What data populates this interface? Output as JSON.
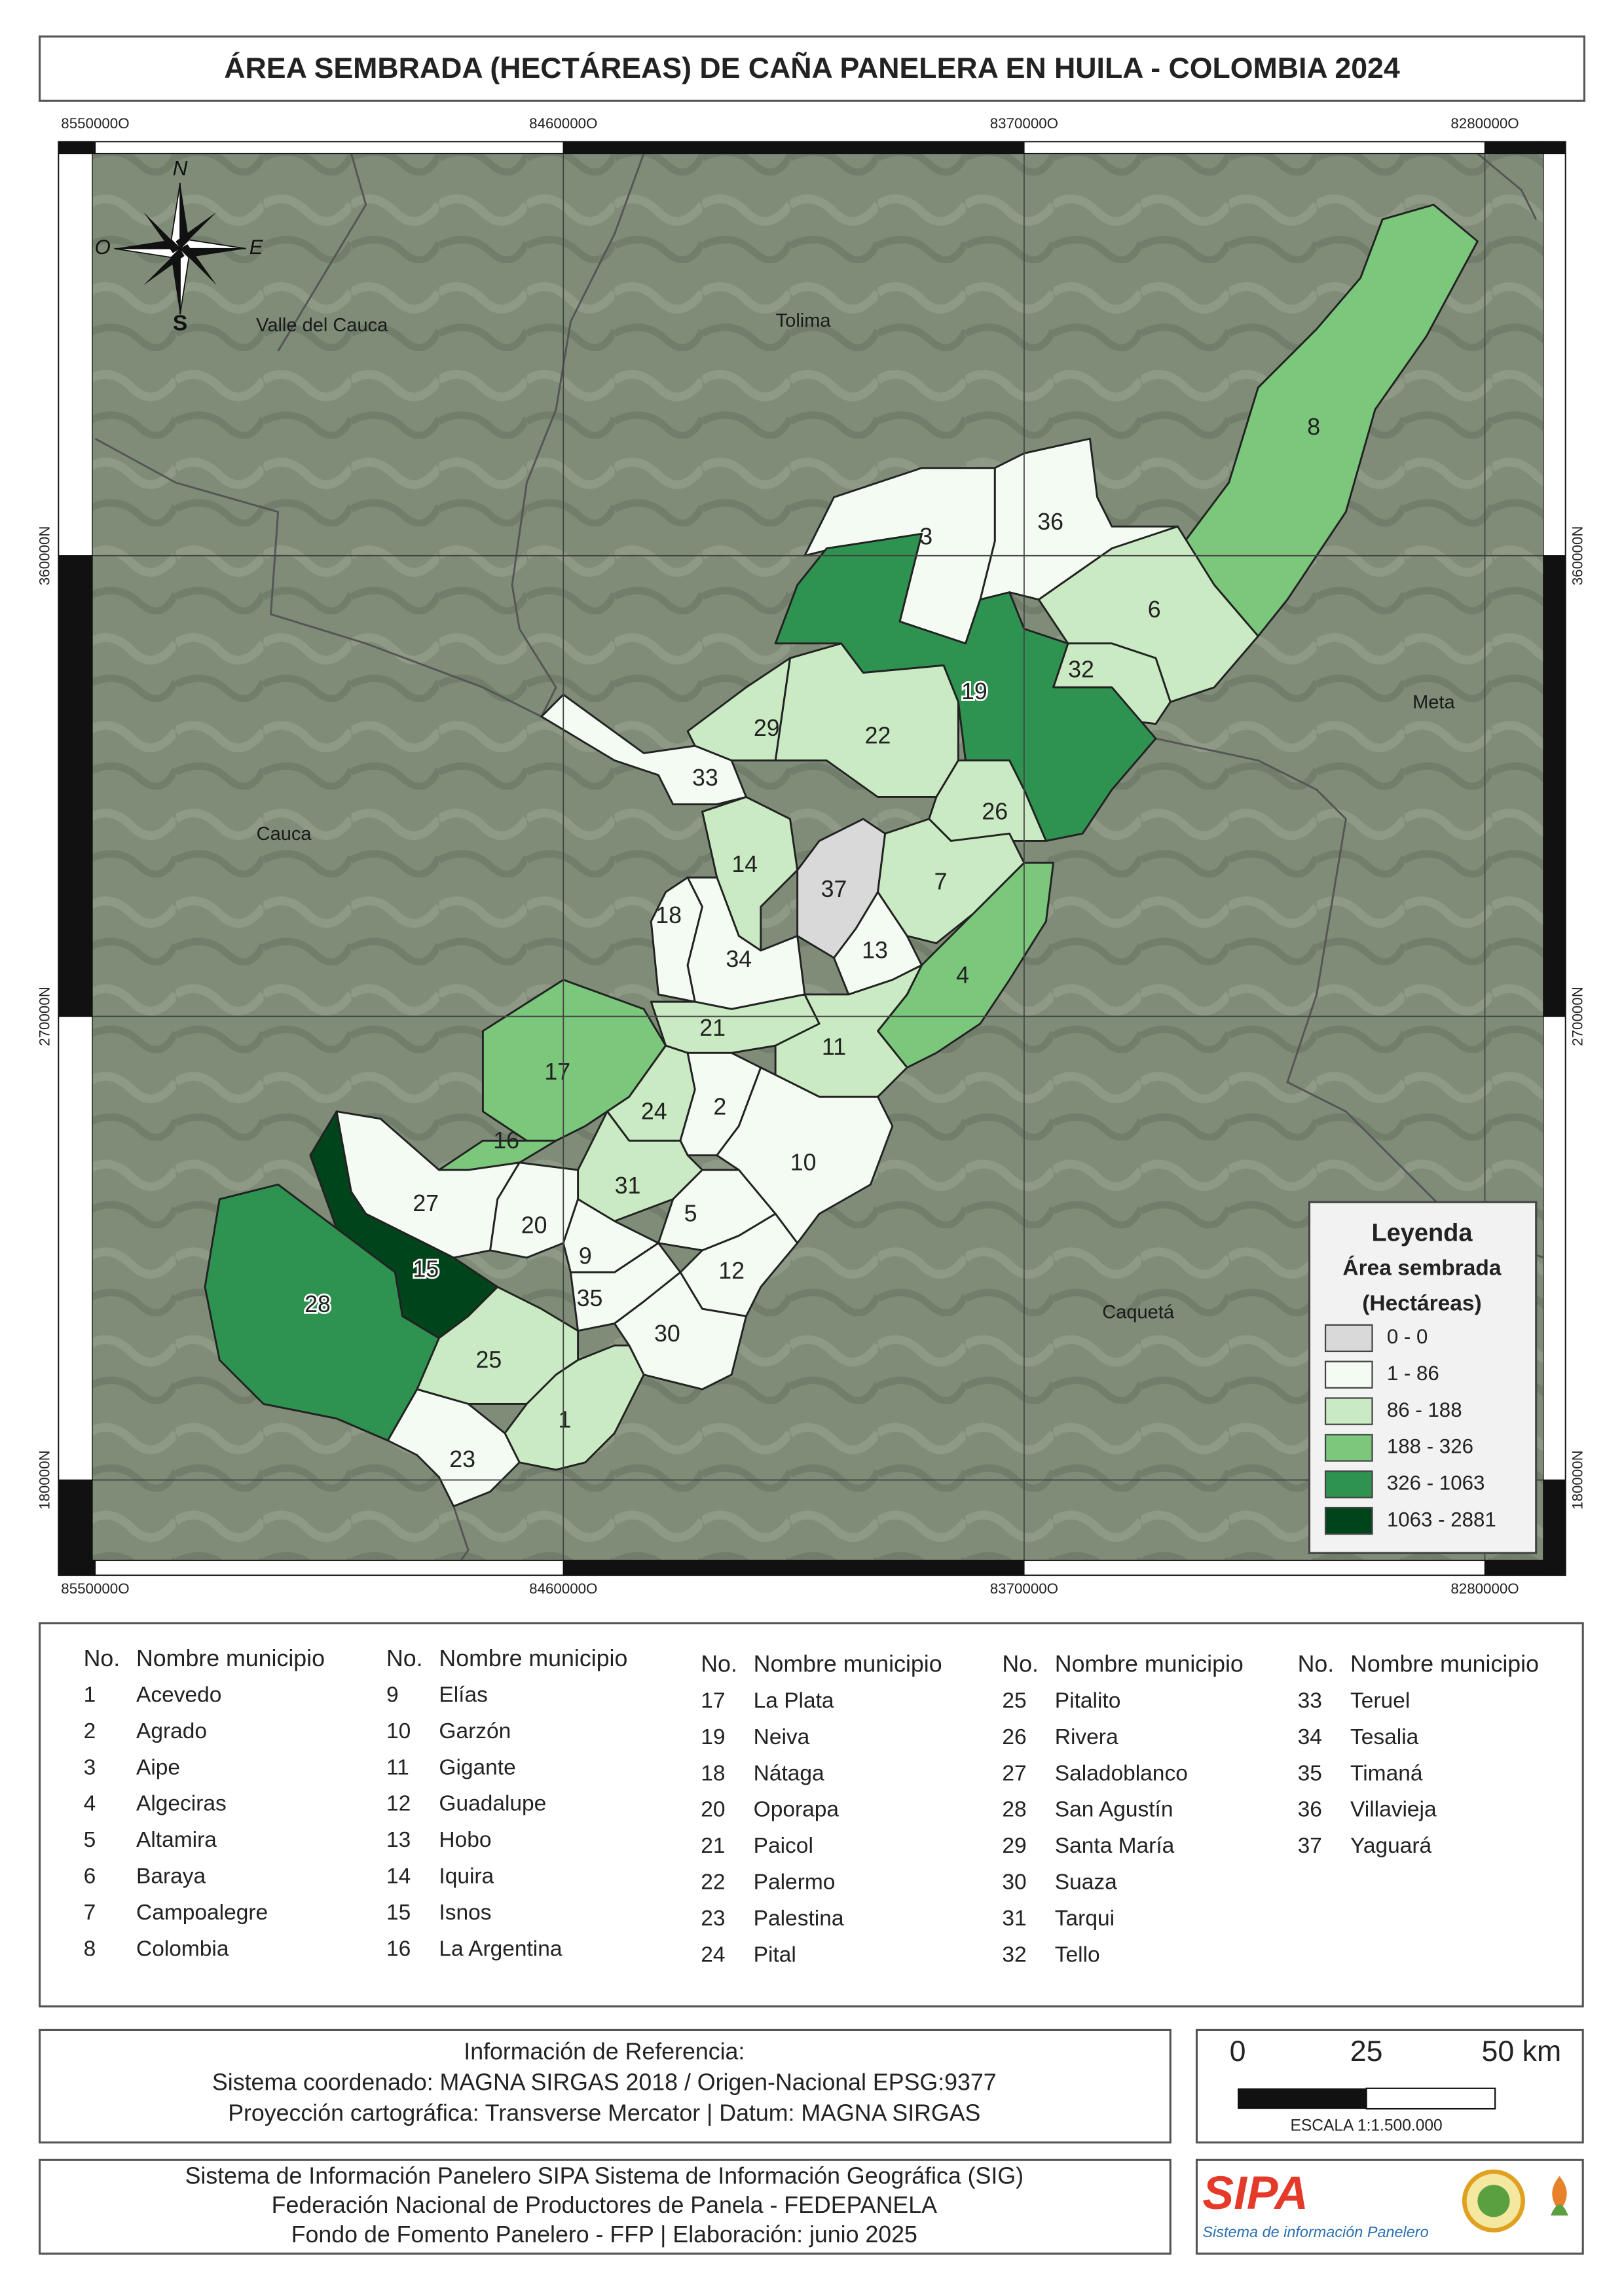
{
  "title": "ÁREA SEMBRADA (HECTÁREAS) DE CAÑA PANELERA EN HUILA - COLOMBIA 2024",
  "map": {
    "coord_labels": {
      "top": [
        "8550000O",
        "8460000O",
        "8370000O",
        "8280000O"
      ],
      "bottom": [
        "8550000O",
        "8460000O",
        "8370000O",
        "8280000O"
      ],
      "left": [
        "360000N",
        "270000N",
        "180000N"
      ],
      "right": [
        "360000N",
        "270000N",
        "180000N"
      ]
    },
    "compass": {
      "north": "N",
      "west": "O",
      "east": "E",
      "south": "S"
    },
    "region_labels": [
      "Valle del Cauca",
      "Tolima",
      "Cauca",
      "Meta",
      "Caquetá"
    ],
    "municipality_labels": [
      "8",
      "36",
      "3",
      "6",
      "32",
      "19",
      "22",
      "29",
      "33",
      "26",
      "14",
      "37",
      "7",
      "18",
      "34",
      "13",
      "4",
      "21",
      "11",
      "17",
      "24",
      "2",
      "16",
      "10",
      "31",
      "27",
      "20",
      "5",
      "9",
      "15",
      "12",
      "35",
      "28",
      "30",
      "25",
      "1",
      "23"
    ]
  },
  "legend": {
    "title": "Leyenda",
    "subtitle": "Área sembrada",
    "unit": "(Hectáreas)",
    "classes": [
      {
        "label": "0 - 0",
        "color": "#d9d9d9"
      },
      {
        "label": "1 - 86",
        "color": "#f4fbf2"
      },
      {
        "label": "86 - 188",
        "color": "#c9eac2"
      },
      {
        "label": "188 - 326",
        "color": "#7bc77c"
      },
      {
        "label": "326 - 1063",
        "color": "#2e9350"
      },
      {
        "label": "1063 - 2881",
        "color": "#00441b"
      }
    ]
  },
  "municipality_table": {
    "columns": [
      {
        "header_no": "No.",
        "header_name": "Nombre municipio",
        "rows": [
          [
            "1",
            "Acevedo"
          ],
          [
            "2",
            "Agrado"
          ],
          [
            "3",
            "Aipe"
          ],
          [
            "4",
            "Algeciras"
          ],
          [
            "5",
            "Altamira"
          ],
          [
            "6",
            "Baraya"
          ],
          [
            "7",
            "Campoalegre"
          ],
          [
            "8",
            "Colombia"
          ]
        ]
      },
      {
        "header_no": "No.",
        "header_name": "Nombre municipio",
        "rows": [
          [
            "9",
            "Elías"
          ],
          [
            "10",
            "Garzón"
          ],
          [
            "11",
            "Gigante"
          ],
          [
            "12",
            "Guadalupe"
          ],
          [
            "13",
            "Hobo"
          ],
          [
            "14",
            "Iquira"
          ],
          [
            "15",
            "Isnos"
          ],
          [
            "16",
            "La Argentina"
          ]
        ]
      },
      {
        "header_no": "No.",
        "header_name": "Nombre municipio",
        "rows": [
          [
            "17",
            "La Plata"
          ],
          [
            "19",
            "Neiva"
          ],
          [
            "18",
            "Nátaga"
          ],
          [
            "20",
            "Oporapa"
          ],
          [
            "21",
            "Paicol"
          ],
          [
            "22",
            "Palermo"
          ],
          [
            "23",
            "Palestina"
          ],
          [
            "24",
            "Pital"
          ]
        ]
      },
      {
        "header_no": "No.",
        "header_name": "Nombre municipio",
        "rows": [
          [
            "25",
            "Pitalito"
          ],
          [
            "26",
            "Rivera"
          ],
          [
            "27",
            "Saladoblanco"
          ],
          [
            "28",
            "San Agustín"
          ],
          [
            "29",
            "Santa María"
          ],
          [
            "30",
            "Suaza"
          ],
          [
            "31",
            "Tarqui"
          ],
          [
            "32",
            "Tello"
          ]
        ]
      },
      {
        "header_no": "No.",
        "header_name": "Nombre municipio",
        "rows": [
          [
            "33",
            "Teruel"
          ],
          [
            "34",
            "Tesalia"
          ],
          [
            "35",
            "Timaná"
          ],
          [
            "36",
            "Villavieja"
          ],
          [
            "37",
            "Yaguará"
          ]
        ]
      }
    ]
  },
  "reference": {
    "title": "Información de Referencia:",
    "lines": [
      "Sistema coordenado: MAGNA SIRGAS 2018 / Origen-Nacional EPSG:9377",
      "Proyección cartográfica: Transverse Mercator | Datum: MAGNA SIRGAS"
    ]
  },
  "scale_bar": {
    "labels": [
      "0",
      "25",
      "50 km"
    ],
    "caption": "ESCALA 1:1.500.000"
  },
  "credits": {
    "lines": [
      "Sistema de Información Panelero SIPA  Sistema de Información Geográfica (SIG)",
      "Federación Nacional de Productores de Panela - FEDEPANELA",
      "Fondo de Fomento Panelero - FFP |  Elaboración: junio 2025"
    ]
  },
  "logos": {
    "sipa": "SIPA",
    "sipa_subtitle": "Sistema de información Panelero"
  }
}
